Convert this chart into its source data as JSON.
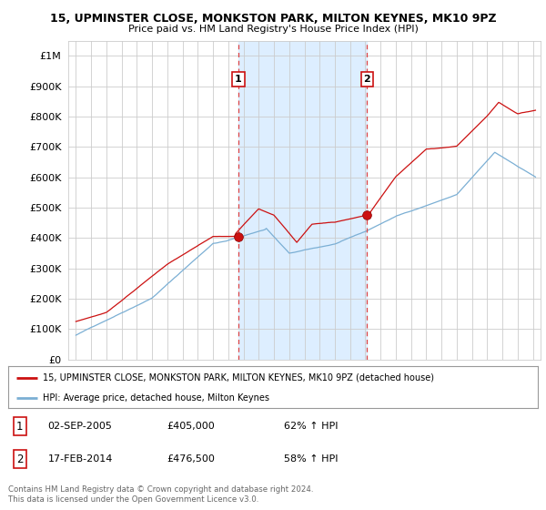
{
  "title1": "15, UPMINSTER CLOSE, MONKSTON PARK, MILTON KEYNES, MK10 9PZ",
  "title2": "Price paid vs. HM Land Registry's House Price Index (HPI)",
  "ytick_vals": [
    0,
    100000,
    200000,
    300000,
    400000,
    500000,
    600000,
    700000,
    800000,
    900000,
    1000000
  ],
  "ylim": [
    0,
    1050000
  ],
  "xlim_start": 1994.5,
  "xlim_end": 2025.5,
  "sale1_x": 2005.67,
  "sale1_y": 405000,
  "sale2_x": 2014.12,
  "sale2_y": 476500,
  "hpi_color": "#7bafd4",
  "price_color": "#cc1111",
  "vline_color": "#dd4444",
  "grid_color": "#cccccc",
  "plot_bg_color": "#ffffff",
  "shade_color": "#ddeeff",
  "legend_label1": "15, UPMINSTER CLOSE, MONKSTON PARK, MILTON KEYNES, MK10 9PZ (detached house)",
  "legend_label2": "HPI: Average price, detached house, Milton Keynes",
  "table_entries": [
    {
      "num": "1",
      "date": "02-SEP-2005",
      "price": "£405,000",
      "change": "62% ↑ HPI"
    },
    {
      "num": "2",
      "date": "17-FEB-2014",
      "price": "£476,500",
      "change": "58% ↑ HPI"
    }
  ],
  "footer": "Contains HM Land Registry data © Crown copyright and database right 2024.\nThis data is licensed under the Open Government Licence v3.0."
}
